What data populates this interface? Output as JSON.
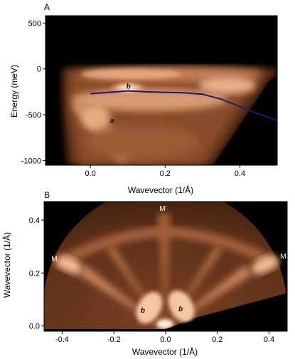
{
  "chart_data": [
    {
      "panel": "A",
      "type": "heatmap",
      "xlabel": "Wavevector (1/Å)",
      "ylabel": "Energy (meV)",
      "xlim": [
        -0.12,
        0.5
      ],
      "ylim": [
        -1050,
        580
      ],
      "xticks": [
        0.0,
        0.2,
        0.4
      ],
      "xtick_labels": [
        "0.0",
        "0.2",
        "0.4"
      ],
      "yticks": [
        500,
        0,
        -500,
        -1000
      ],
      "ytick_labels": [
        "500",
        "0",
        "-500",
        "-1000"
      ],
      "colormap": [
        "#000000",
        "#3a1c0c",
        "#8a4c2a",
        "#e0966a",
        "#ffd9b8",
        "#fff4ea"
      ],
      "series": [
        {
          "type": "line",
          "color": "#1a1a7a",
          "x": [
            0.0,
            0.05,
            0.1,
            0.15,
            0.2,
            0.25,
            0.3,
            0.35,
            0.4,
            0.45,
            0.5
          ],
          "y": [
            -270,
            -255,
            -240,
            -250,
            -255,
            -260,
            -275,
            -330,
            -410,
            -490,
            -560
          ]
        }
      ],
      "annotations": [
        {
          "text": "b",
          "x": 0.102,
          "y": -215
        },
        {
          "text": "a",
          "x": 0.058,
          "y": -590
        }
      ]
    },
    {
      "panel": "B",
      "type": "heatmap",
      "xlabel": "Wavevector (1/Å)",
      "ylabel": "Wavevector (1/Å)",
      "xlim": [
        -0.47,
        0.47
      ],
      "ylim": [
        -0.02,
        0.47
      ],
      "xticks": [
        -0.4,
        -0.2,
        0.0,
        0.2,
        0.4
      ],
      "xtick_labels": [
        "-0.4",
        "-0.2",
        "0.0",
        "0.2",
        "0.4"
      ],
      "yticks": [
        0.0,
        0.2,
        0.4
      ],
      "ytick_labels": [
        "0.0",
        "0.2",
        "0.4"
      ],
      "colormap": [
        "#000000",
        "#3a1c0c",
        "#8a4c2a",
        "#e0966a",
        "#ffd9b8",
        "#fff4ea"
      ],
      "annotations": [
        {
          "text": "b",
          "x": -0.088,
          "y": 0.05
        },
        {
          "text": "b",
          "x": 0.058,
          "y": 0.055
        },
        {
          "text": "M'",
          "x": -0.01,
          "y": 0.435
        },
        {
          "text": "M",
          "x": -0.43,
          "y": 0.245
        },
        {
          "text": "M",
          "x": 0.455,
          "y": 0.255
        }
      ]
    }
  ]
}
